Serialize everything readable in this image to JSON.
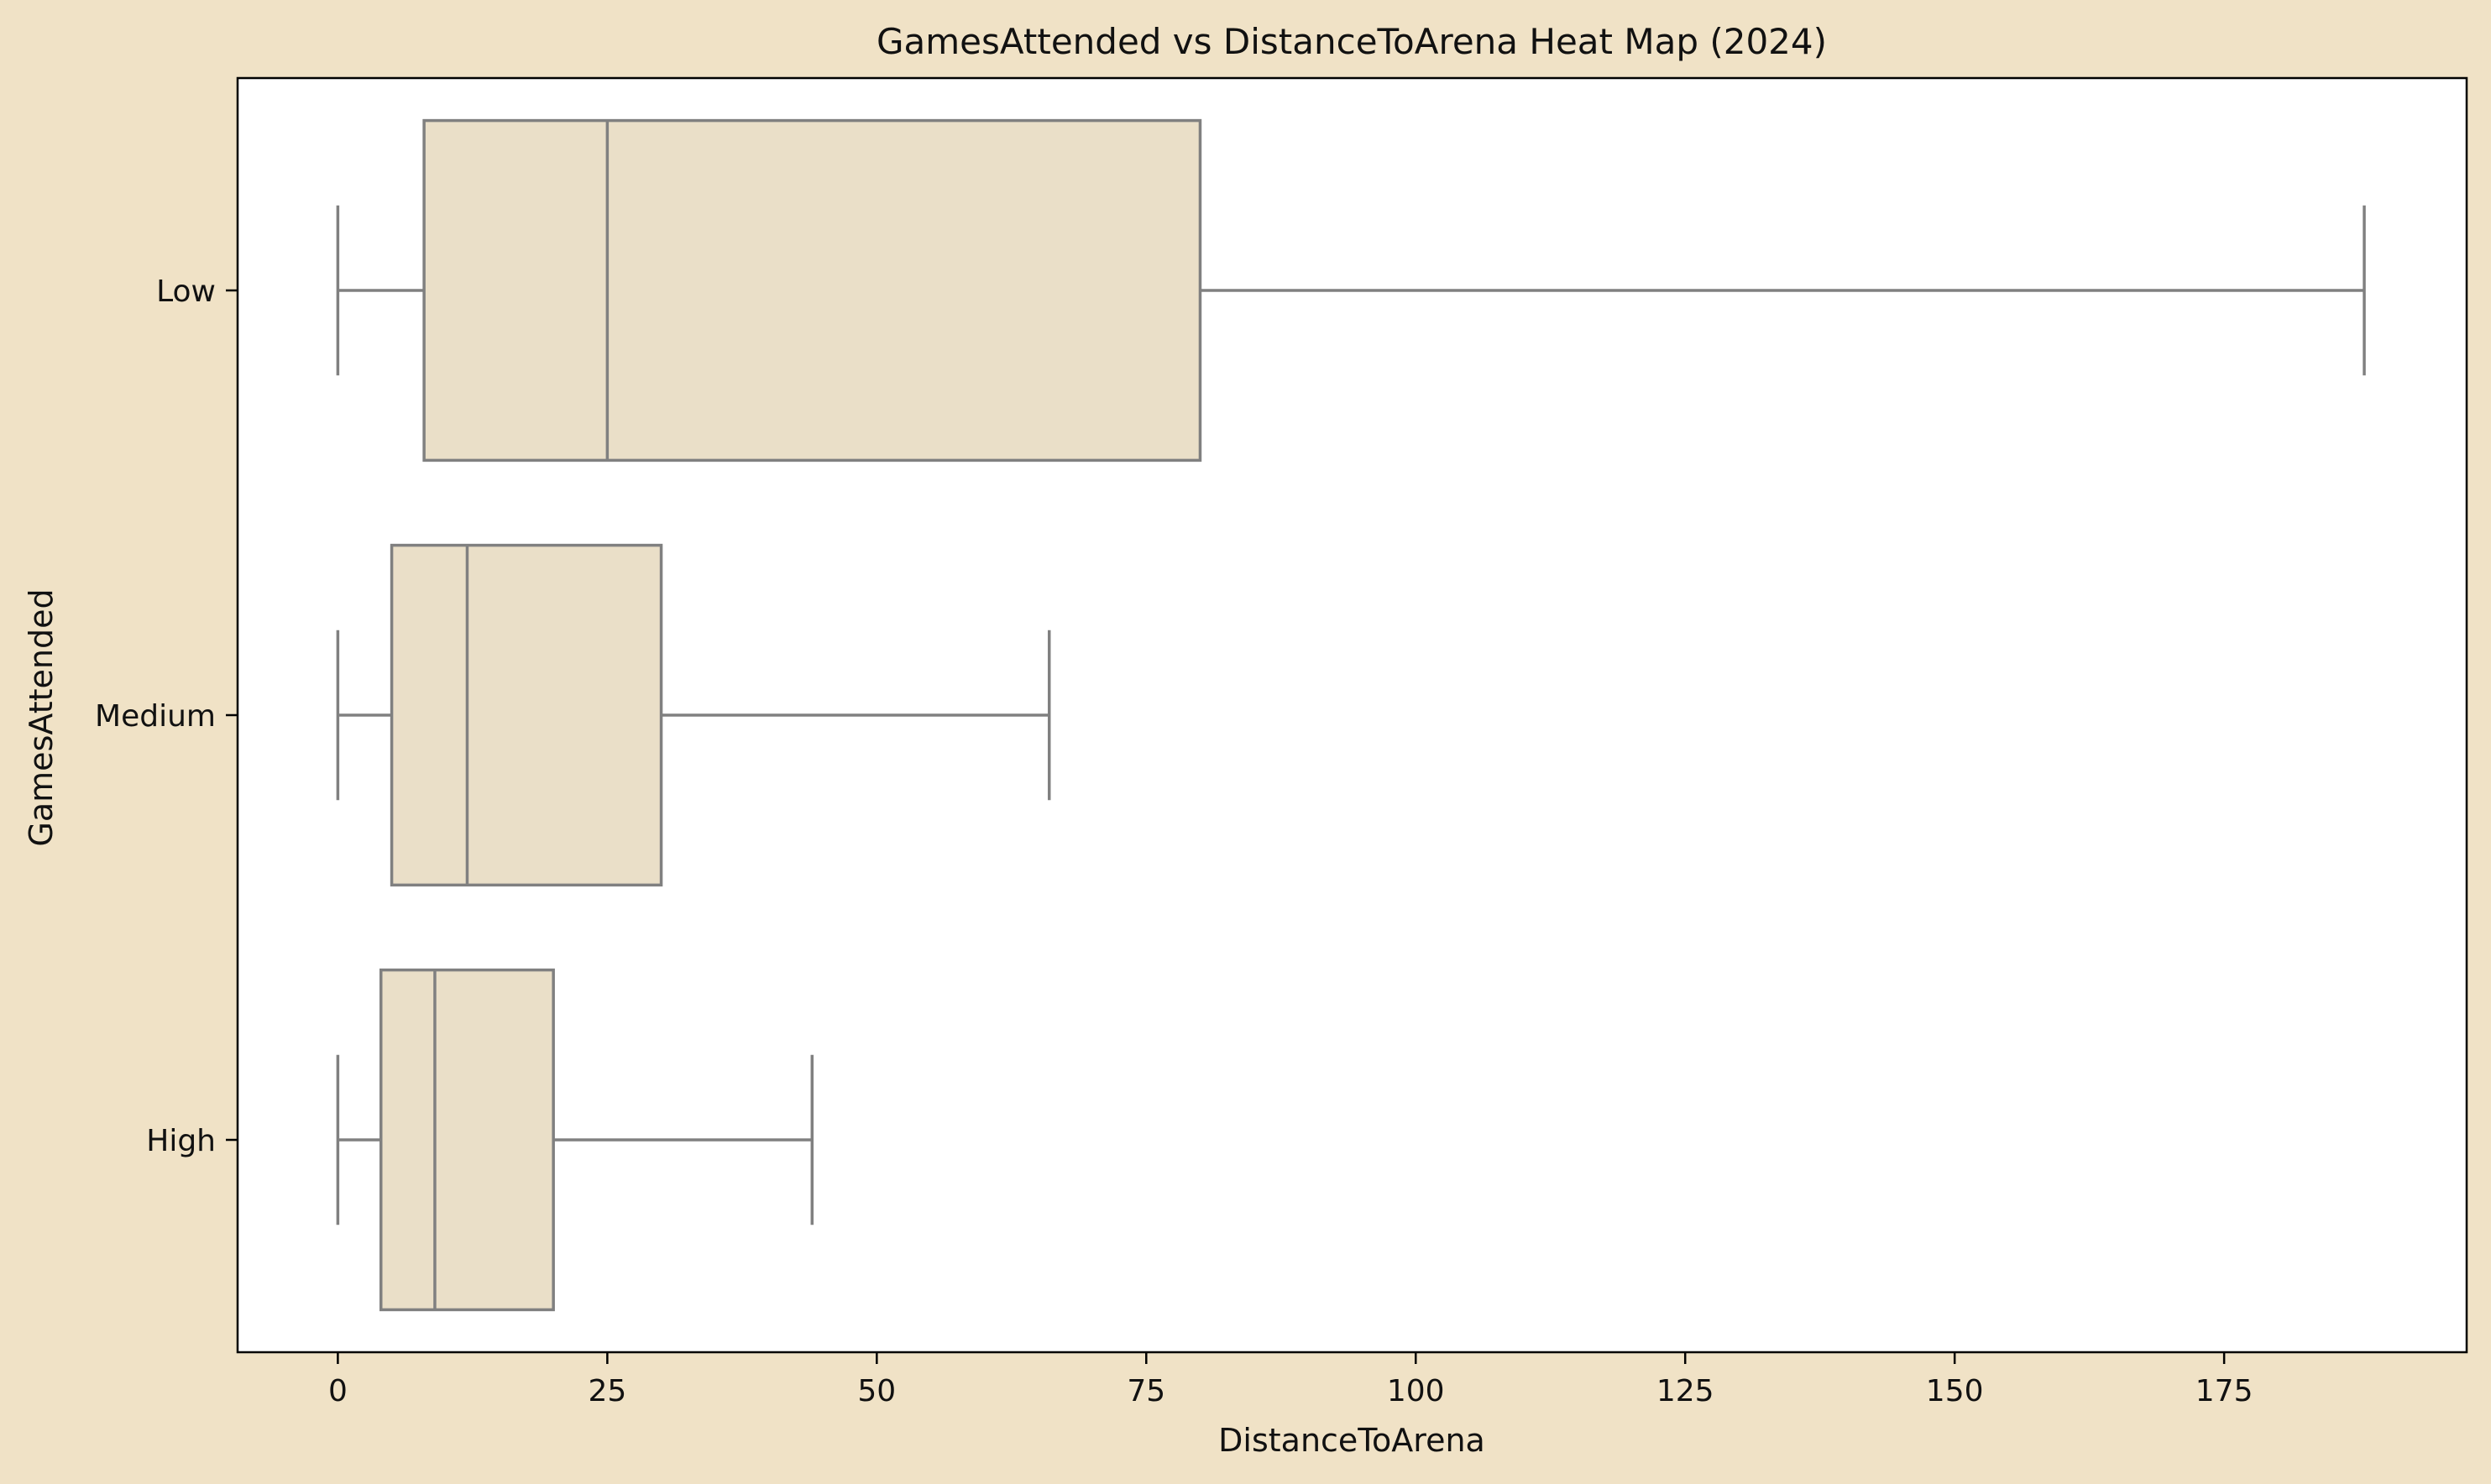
{
  "chart_data": {
    "type": "boxplot",
    "orientation": "horizontal",
    "title": "GamesAttended vs DistanceToArena Heat Map (2024)",
    "xlabel": "DistanceToArena",
    "ylabel": "GamesAttended",
    "xlim": [
      -9.3,
      197.5
    ],
    "xticks": [
      0,
      25,
      50,
      75,
      100,
      125,
      150,
      175
    ],
    "categories": [
      "Low",
      "Medium",
      "High"
    ],
    "boxes": [
      {
        "category": "Low",
        "whisker_low": 0,
        "q1": 8,
        "median": 25,
        "q3": 80,
        "whisker_high": 188
      },
      {
        "category": "Medium",
        "whisker_low": 0,
        "q1": 5,
        "median": 12,
        "q3": 30,
        "whisker_high": 66
      },
      {
        "category": "High",
        "whisker_low": 0,
        "q1": 4,
        "median": 9,
        "q3": 20,
        "whisker_high": 44
      }
    ],
    "box_fill": "#eadfc8",
    "line_color": "#808080",
    "figure_background": "#f0e2c6",
    "plot_background": "#ffffff",
    "grid": false,
    "legend": "none"
  }
}
